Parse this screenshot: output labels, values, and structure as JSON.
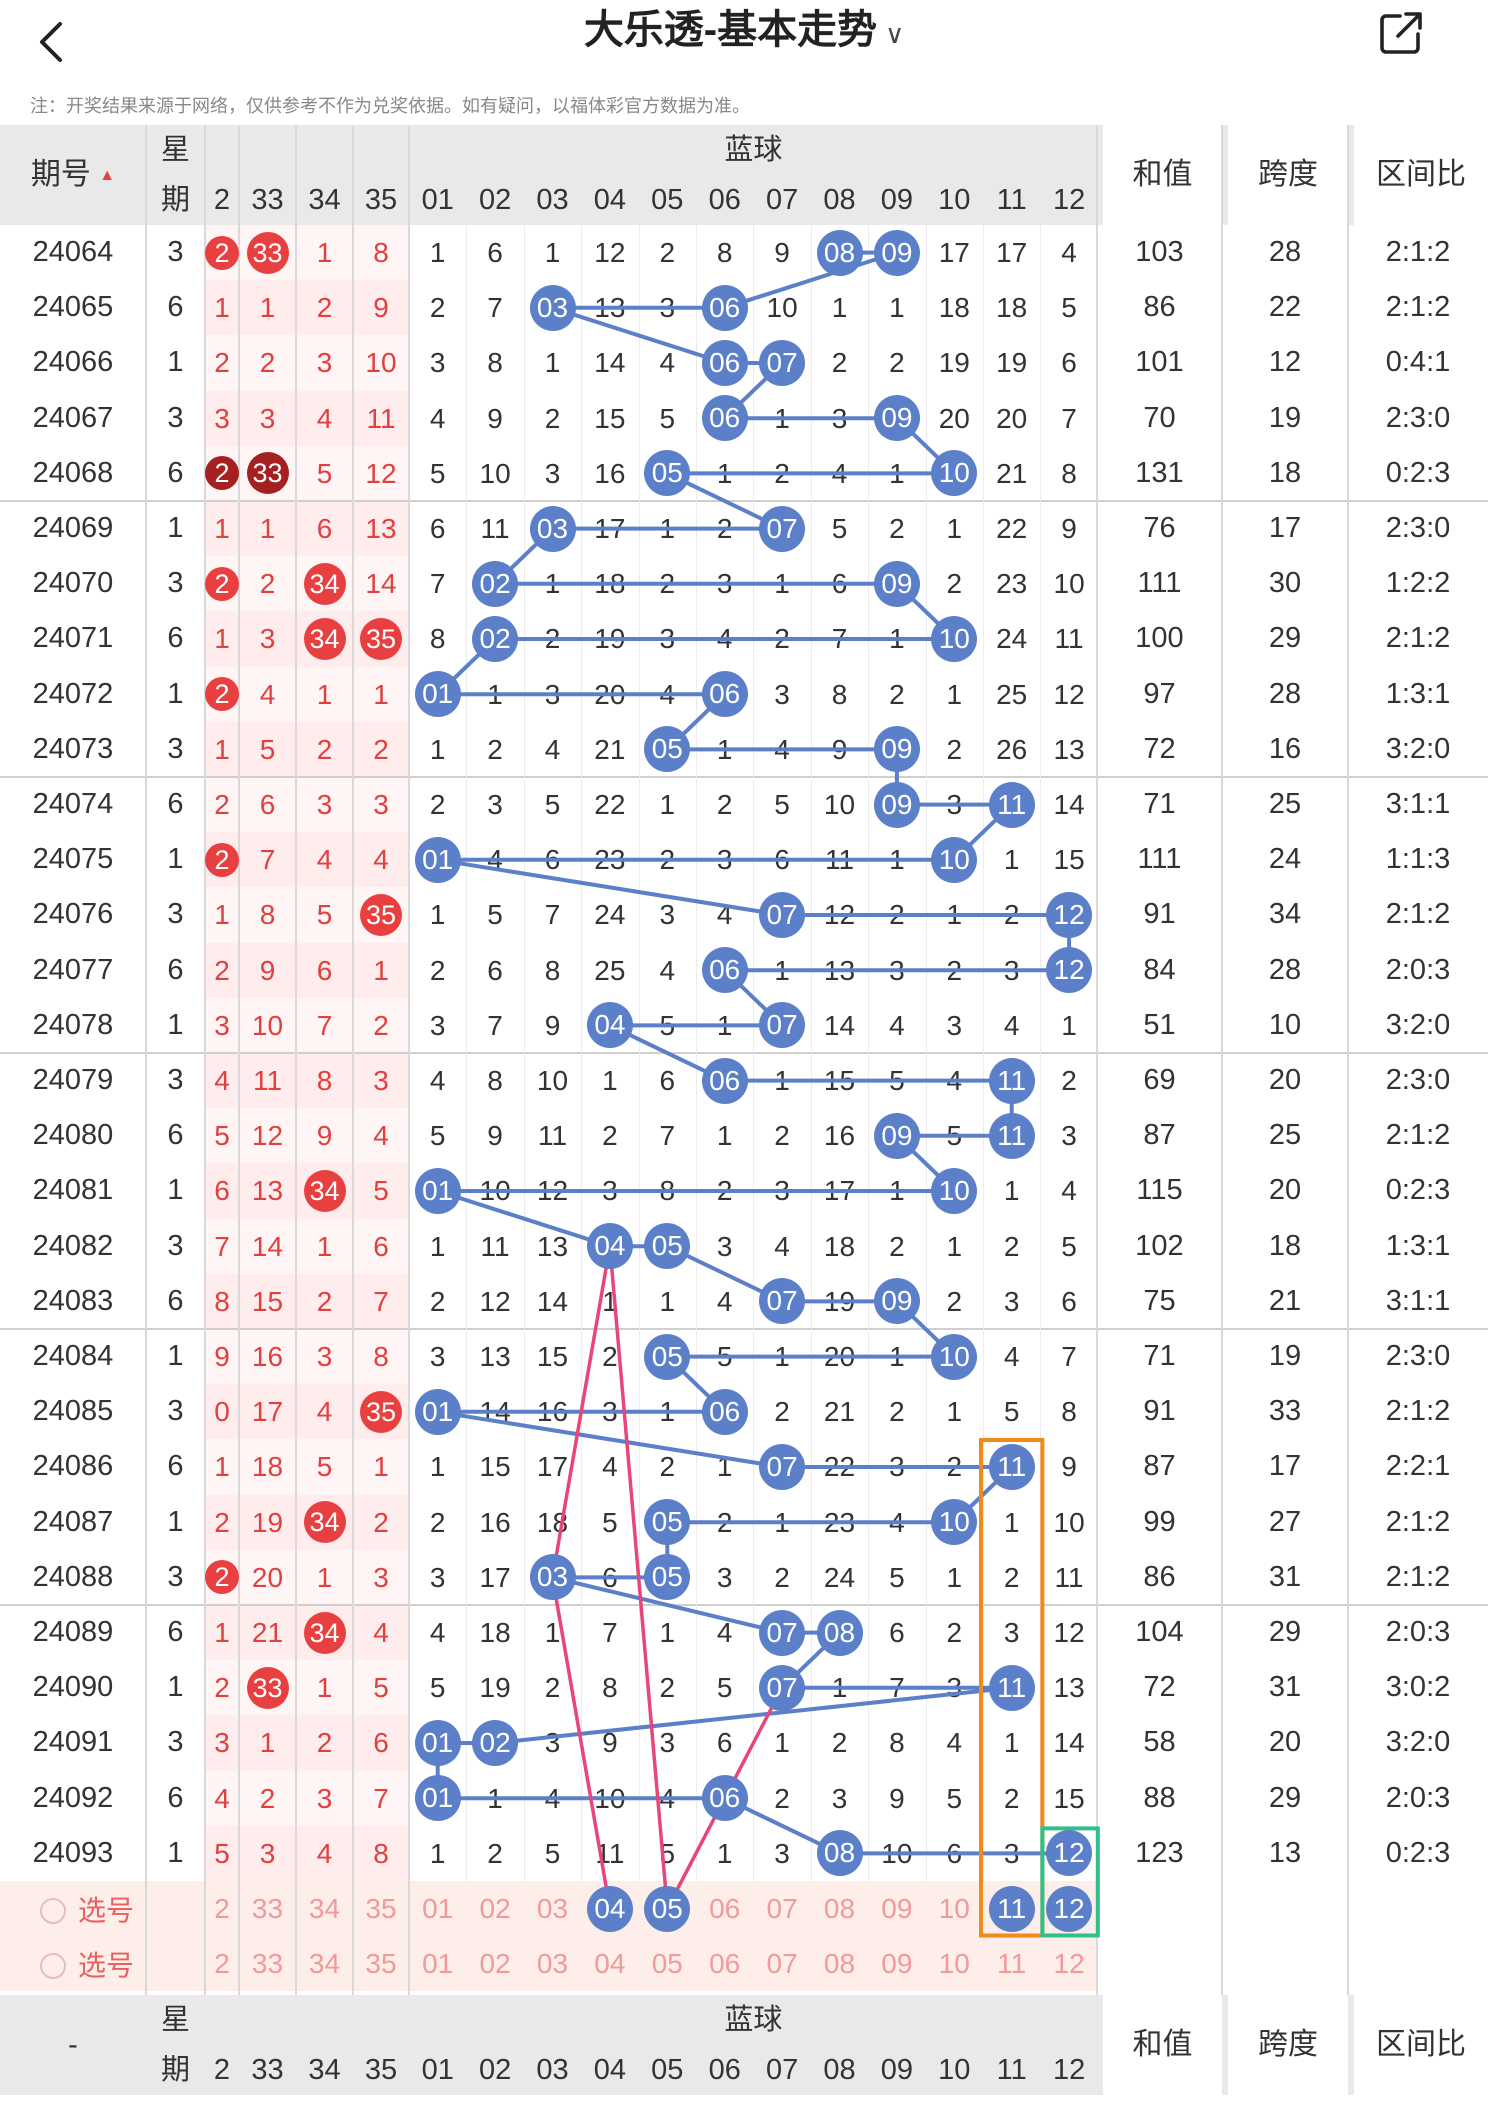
{
  "header": {
    "title": "大乐透-基本走势",
    "note": "注：开奖结果来源于网络，仅供参考不作为兑奖依据。如有疑问，以福体彩官方数据为准。",
    "back_icon": "chevron-left-icon",
    "share_icon": "share-external-icon",
    "dropdown_icon": "chevron-down-icon"
  },
  "columns": {
    "issue": "期号",
    "weekday": [
      "星",
      "期"
    ],
    "blue_group": "蓝球",
    "sum": "和值",
    "span": "跨度",
    "zone": "区间比",
    "red_nums": [
      "2",
      "33",
      "34",
      "35"
    ],
    "blue_nums": [
      "01",
      "02",
      "03",
      "04",
      "05",
      "06",
      "07",
      "08",
      "09",
      "10",
      "11",
      "12"
    ],
    "footer_issue": "-"
  },
  "rows": [
    {
      "issue": "24064",
      "wd": "3",
      "red": [
        "2",
        "33",
        "1",
        "8"
      ],
      "blue": [
        "1",
        "6",
        "1",
        "12",
        "2",
        "8",
        "9",
        "08",
        "09",
        "17",
        "17",
        "4"
      ],
      "sum": "103",
      "span": "28",
      "zone": "2:1:2"
    },
    {
      "issue": "24065",
      "wd": "6",
      "red": [
        "1",
        "1",
        "2",
        "9"
      ],
      "blue": [
        "2",
        "7",
        "03",
        "13",
        "3",
        "06",
        "10",
        "1",
        "1",
        "18",
        "18",
        "5"
      ],
      "sum": "86",
      "span": "22",
      "zone": "2:1:2"
    },
    {
      "issue": "24066",
      "wd": "1",
      "red": [
        "2",
        "2",
        "3",
        "10"
      ],
      "blue": [
        "3",
        "8",
        "1",
        "14",
        "4",
        "06",
        "07",
        "2",
        "2",
        "19",
        "19",
        "6"
      ],
      "sum": "101",
      "span": "12",
      "zone": "0:4:1"
    },
    {
      "issue": "24067",
      "wd": "3",
      "red": [
        "3",
        "3",
        "4",
        "11"
      ],
      "blue": [
        "4",
        "9",
        "2",
        "15",
        "5",
        "06",
        "1",
        "3",
        "09",
        "20",
        "20",
        "7"
      ],
      "sum": "70",
      "span": "19",
      "zone": "2:3:0"
    },
    {
      "issue": "24068",
      "wd": "6",
      "red": [
        "2",
        "33",
        "5",
        "12"
      ],
      "blue": [
        "5",
        "10",
        "3",
        "16",
        "05",
        "1",
        "2",
        "4",
        "1",
        "10",
        "21",
        "8"
      ],
      "sum": "131",
      "span": "18",
      "zone": "0:2:3"
    },
    {
      "issue": "24069",
      "wd": "1",
      "red": [
        "1",
        "1",
        "6",
        "13"
      ],
      "blue": [
        "6",
        "11",
        "03",
        "17",
        "1",
        "2",
        "07",
        "5",
        "2",
        "1",
        "22",
        "9"
      ],
      "sum": "76",
      "span": "17",
      "zone": "2:3:0"
    },
    {
      "issue": "24070",
      "wd": "3",
      "red": [
        "2",
        "2",
        "34",
        "14"
      ],
      "blue": [
        "7",
        "02",
        "1",
        "18",
        "2",
        "3",
        "1",
        "6",
        "09",
        "2",
        "23",
        "10"
      ],
      "sum": "111",
      "span": "30",
      "zone": "1:2:2"
    },
    {
      "issue": "24071",
      "wd": "6",
      "red": [
        "1",
        "3",
        "34",
        "35"
      ],
      "blue": [
        "8",
        "02",
        "2",
        "19",
        "3",
        "4",
        "2",
        "7",
        "1",
        "10",
        "24",
        "11"
      ],
      "sum": "100",
      "span": "29",
      "zone": "2:1:2"
    },
    {
      "issue": "24072",
      "wd": "1",
      "red": [
        "2",
        "4",
        "1",
        "1"
      ],
      "blue": [
        "01",
        "1",
        "3",
        "20",
        "4",
        "06",
        "3",
        "8",
        "2",
        "1",
        "25",
        "12"
      ],
      "sum": "97",
      "span": "28",
      "zone": "1:3:1"
    },
    {
      "issue": "24073",
      "wd": "3",
      "red": [
        "1",
        "5",
        "2",
        "2"
      ],
      "blue": [
        "1",
        "2",
        "4",
        "21",
        "05",
        "1",
        "4",
        "9",
        "09",
        "2",
        "26",
        "13"
      ],
      "sum": "72",
      "span": "16",
      "zone": "3:2:0"
    },
    {
      "issue": "24074",
      "wd": "6",
      "red": [
        "2",
        "6",
        "3",
        "3"
      ],
      "blue": [
        "2",
        "3",
        "5",
        "22",
        "1",
        "2",
        "5",
        "10",
        "09",
        "3",
        "11",
        "14"
      ],
      "sum": "71",
      "span": "25",
      "zone": "3:1:1"
    },
    {
      "issue": "24075",
      "wd": "1",
      "red": [
        "2",
        "7",
        "4",
        "4"
      ],
      "blue": [
        "01",
        "4",
        "6",
        "23",
        "2",
        "3",
        "6",
        "11",
        "1",
        "10",
        "1",
        "15"
      ],
      "sum": "111",
      "span": "24",
      "zone": "1:1:3"
    },
    {
      "issue": "24076",
      "wd": "3",
      "red": [
        "1",
        "8",
        "5",
        "35"
      ],
      "blue": [
        "1",
        "5",
        "7",
        "24",
        "3",
        "4",
        "07",
        "12",
        "2",
        "1",
        "2",
        "12"
      ],
      "sum": "91",
      "span": "34",
      "zone": "2:1:2"
    },
    {
      "issue": "24077",
      "wd": "6",
      "red": [
        "2",
        "9",
        "6",
        "1"
      ],
      "blue": [
        "2",
        "6",
        "8",
        "25",
        "4",
        "06",
        "1",
        "13",
        "3",
        "2",
        "3",
        "12"
      ],
      "sum": "84",
      "span": "28",
      "zone": "2:0:3"
    },
    {
      "issue": "24078",
      "wd": "1",
      "red": [
        "3",
        "10",
        "7",
        "2"
      ],
      "blue": [
        "3",
        "7",
        "9",
        "04",
        "5",
        "1",
        "07",
        "14",
        "4",
        "3",
        "4",
        "1"
      ],
      "sum": "51",
      "span": "10",
      "zone": "3:2:0"
    },
    {
      "issue": "24079",
      "wd": "3",
      "red": [
        "4",
        "11",
        "8",
        "3"
      ],
      "blue": [
        "4",
        "8",
        "10",
        "1",
        "6",
        "06",
        "1",
        "15",
        "5",
        "4",
        "11",
        "2"
      ],
      "sum": "69",
      "span": "20",
      "zone": "2:3:0"
    },
    {
      "issue": "24080",
      "wd": "6",
      "red": [
        "5",
        "12",
        "9",
        "4"
      ],
      "blue": [
        "5",
        "9",
        "11",
        "2",
        "7",
        "1",
        "2",
        "16",
        "09",
        "5",
        "11",
        "3"
      ],
      "sum": "87",
      "span": "25",
      "zone": "2:1:2"
    },
    {
      "issue": "24081",
      "wd": "1",
      "red": [
        "6",
        "13",
        "34",
        "5"
      ],
      "blue": [
        "01",
        "10",
        "12",
        "3",
        "8",
        "2",
        "3",
        "17",
        "1",
        "10",
        "1",
        "4"
      ],
      "sum": "115",
      "span": "20",
      "zone": "0:2:3"
    },
    {
      "issue": "24082",
      "wd": "3",
      "red": [
        "7",
        "14",
        "1",
        "6"
      ],
      "blue": [
        "1",
        "11",
        "13",
        "04",
        "05",
        "3",
        "4",
        "18",
        "2",
        "1",
        "2",
        "5"
      ],
      "sum": "102",
      "span": "18",
      "zone": "1:3:1"
    },
    {
      "issue": "24083",
      "wd": "6",
      "red": [
        "8",
        "15",
        "2",
        "7"
      ],
      "blue": [
        "2",
        "12",
        "14",
        "1",
        "1",
        "4",
        "07",
        "19",
        "09",
        "2",
        "3",
        "6"
      ],
      "sum": "75",
      "span": "21",
      "zone": "3:1:1"
    },
    {
      "issue": "24084",
      "wd": "1",
      "red": [
        "9",
        "16",
        "3",
        "8"
      ],
      "blue": [
        "3",
        "13",
        "15",
        "2",
        "05",
        "5",
        "1",
        "20",
        "1",
        "10",
        "4",
        "7"
      ],
      "sum": "71",
      "span": "19",
      "zone": "2:3:0"
    },
    {
      "issue": "24085",
      "wd": "3",
      "red": [
        "0",
        "17",
        "4",
        "35"
      ],
      "blue": [
        "01",
        "14",
        "16",
        "3",
        "1",
        "06",
        "2",
        "21",
        "2",
        "1",
        "5",
        "8"
      ],
      "sum": "91",
      "span": "33",
      "zone": "2:1:2"
    },
    {
      "issue": "24086",
      "wd": "6",
      "red": [
        "1",
        "18",
        "5",
        "1"
      ],
      "blue": [
        "1",
        "15",
        "17",
        "4",
        "2",
        "1",
        "07",
        "22",
        "3",
        "2",
        "11",
        "9"
      ],
      "sum": "87",
      "span": "17",
      "zone": "2:2:1"
    },
    {
      "issue": "24087",
      "wd": "1",
      "red": [
        "2",
        "19",
        "34",
        "2"
      ],
      "blue": [
        "2",
        "16",
        "18",
        "5",
        "05",
        "2",
        "1",
        "23",
        "4",
        "10",
        "1",
        "10"
      ],
      "sum": "99",
      "span": "27",
      "zone": "2:1:2"
    },
    {
      "issue": "24088",
      "wd": "3",
      "red": [
        "2",
        "20",
        "1",
        "3"
      ],
      "blue": [
        "3",
        "17",
        "03",
        "6",
        "05",
        "3",
        "2",
        "24",
        "5",
        "1",
        "2",
        "11"
      ],
      "sum": "86",
      "span": "31",
      "zone": "2:1:2"
    },
    {
      "issue": "24089",
      "wd": "6",
      "red": [
        "1",
        "21",
        "34",
        "4"
      ],
      "blue": [
        "4",
        "18",
        "1",
        "7",
        "1",
        "4",
        "07",
        "08",
        "6",
        "2",
        "3",
        "12"
      ],
      "sum": "104",
      "span": "29",
      "zone": "2:0:3"
    },
    {
      "issue": "24090",
      "wd": "1",
      "red": [
        "2",
        "33",
        "1",
        "5"
      ],
      "blue": [
        "5",
        "19",
        "2",
        "8",
        "2",
        "5",
        "07",
        "1",
        "7",
        "3",
        "11",
        "13"
      ],
      "sum": "72",
      "span": "31",
      "zone": "3:0:2"
    },
    {
      "issue": "24091",
      "wd": "3",
      "red": [
        "3",
        "1",
        "2",
        "6"
      ],
      "blue": [
        "01",
        "02",
        "3",
        "9",
        "3",
        "6",
        "1",
        "2",
        "8",
        "4",
        "1",
        "14"
      ],
      "sum": "58",
      "span": "20",
      "zone": "3:2:0"
    },
    {
      "issue": "24092",
      "wd": "6",
      "red": [
        "4",
        "2",
        "3",
        "7"
      ],
      "blue": [
        "01",
        "1",
        "4",
        "10",
        "4",
        "06",
        "2",
        "3",
        "9",
        "5",
        "2",
        "15"
      ],
      "sum": "88",
      "span": "29",
      "zone": "2:0:3"
    },
    {
      "issue": "24093",
      "wd": "1",
      "red": [
        "5",
        "3",
        "4",
        "8"
      ],
      "blue": [
        "1",
        "2",
        "5",
        "11",
        "5",
        "1",
        "3",
        "08",
        "10",
        "6",
        "3",
        "12"
      ],
      "sum": "123",
      "span": "13",
      "zone": "0:2:3"
    }
  ],
  "hits": {
    "0": {
      "red": [
        0,
        1
      ],
      "blue": [
        7,
        8
      ]
    },
    "1": {
      "blue": [
        2,
        5
      ]
    },
    "2": {
      "blue": [
        5,
        6
      ]
    },
    "3": {
      "blue": [
        5,
        8
      ]
    },
    "4": {
      "red": [
        0,
        1
      ],
      "dark": [
        0,
        1
      ],
      "blue": [
        4,
        9
      ]
    },
    "5": {
      "blue": [
        2,
        6
      ]
    },
    "6": {
      "red": [
        0,
        2
      ],
      "blue": [
        1,
        8
      ]
    },
    "7": {
      "red": [
        2,
        3
      ],
      "blue": [
        1,
        9
      ]
    },
    "8": {
      "red": [
        0
      ],
      "blue": [
        0,
        5
      ]
    },
    "9": {
      "blue": [
        4,
        8
      ]
    },
    "10": {
      "blue": [
        8,
        10
      ]
    },
    "11": {
      "red": [
        0
      ],
      "blue": [
        0,
        9
      ]
    },
    "12": {
      "red": [
        3
      ],
      "blue": [
        6,
        11
      ]
    },
    "13": {
      "blue": [
        5,
        11
      ]
    },
    "14": {
      "blue": [
        3,
        6
      ]
    },
    "15": {
      "blue": [
        5,
        10
      ]
    },
    "16": {
      "blue": [
        8,
        10
      ]
    },
    "17": {
      "red": [
        2
      ],
      "blue": [
        0,
        9
      ]
    },
    "18": {
      "blue": [
        3,
        4
      ]
    },
    "19": {
      "blue": [
        6,
        8
      ]
    },
    "20": {
      "blue": [
        4,
        9
      ]
    },
    "21": {
      "red": [
        3
      ],
      "blue": [
        0,
        5
      ]
    },
    "22": {
      "blue": [
        6,
        10
      ]
    },
    "23": {
      "red": [
        2
      ],
      "blue": [
        4,
        9
      ]
    },
    "24": {
      "red": [
        0
      ],
      "blue": [
        2,
        4
      ]
    },
    "25": {
      "red": [
        2
      ],
      "blue": [
        6,
        7
      ]
    },
    "26": {
      "red": [
        1
      ],
      "blue": [
        6,
        10
      ]
    },
    "27": {
      "blue": [
        0,
        1
      ]
    },
    "28": {
      "blue": [
        0,
        5
      ]
    },
    "29": {
      "blue": [
        7,
        11
      ]
    }
  },
  "select_rows": {
    "label": "选号",
    "row1_red": [
      "2",
      "33",
      "34",
      "35"
    ],
    "row1_blue": [
      "01",
      "02",
      "03",
      "04",
      "05",
      "06",
      "07",
      "08",
      "09",
      "10",
      "11",
      "12"
    ],
    "row1_selected_blue": [
      3,
      4,
      10,
      11
    ],
    "row2_red": [
      "2",
      "33",
      "34",
      "35"
    ],
    "row2_blue": [
      "01",
      "02",
      "03",
      "04",
      "05",
      "06",
      "07",
      "08",
      "09",
      "10",
      "11",
      "12"
    ]
  },
  "colors": {
    "blue_ball": "#5b7fc8",
    "red_ball": "#e84040",
    "dark_red_ball": "#a52020",
    "red_text": "#e04040",
    "pink_line": "#e8457a",
    "orange_box": "#f08a1c",
    "green_box": "#2fc08a",
    "header_bg": "#e9e9e9",
    "select_bg": "#fdeeea"
  }
}
